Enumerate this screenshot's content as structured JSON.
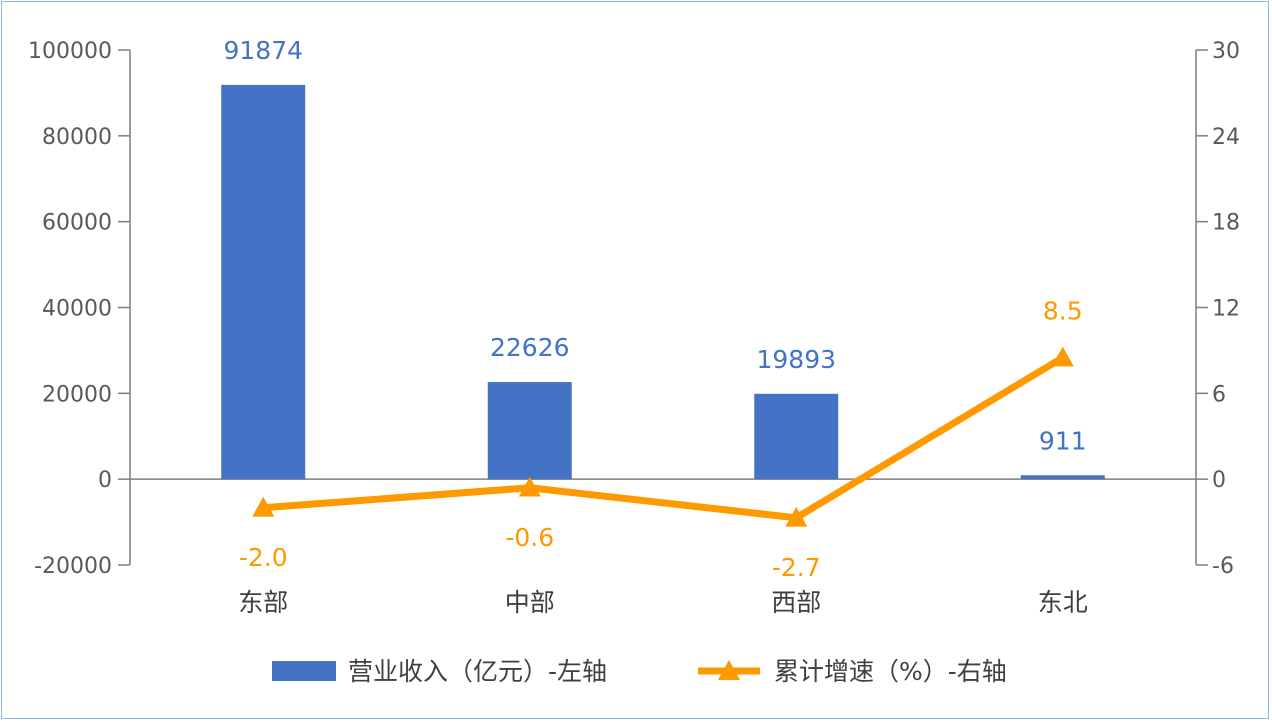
{
  "chart_data": {
    "type": "bar",
    "categories": [
      "东部",
      "中部",
      "西部",
      "东北"
    ],
    "series": [
      {
        "name": "营业收入（亿元）-左轴",
        "type": "bar",
        "axis": "left",
        "values": [
          91874,
          22626,
          19893,
          911
        ],
        "labels": [
          "91874",
          "22626",
          "19893",
          "911"
        ]
      },
      {
        "name": "累计增速（%）-右轴",
        "type": "line",
        "axis": "right",
        "values": [
          -2.0,
          -0.6,
          -2.7,
          8.5
        ],
        "labels": [
          "-2.0",
          "-0.6",
          "-2.7",
          "8.5"
        ]
      }
    ],
    "y_left": {
      "min": -20000,
      "max": 100000,
      "ticks": [
        "100000",
        "80000",
        "60000",
        "40000",
        "20000",
        "0",
        "-20000"
      ]
    },
    "y_right": {
      "min": -6,
      "max": 30,
      "ticks": [
        "30",
        "24",
        "18",
        "12",
        "6",
        "0",
        "-6"
      ]
    },
    "grid": false,
    "legend": "bottom",
    "colors": {
      "bar": "#4472c4",
      "line": "#ff9900",
      "axis": "#7f7f7f"
    }
  }
}
